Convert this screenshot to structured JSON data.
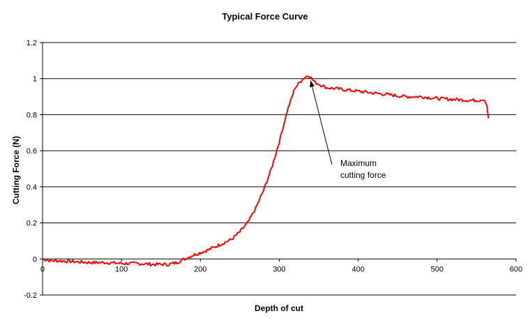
{
  "chart_data": {
    "type": "line",
    "title": "Typical Force Curve",
    "xlabel": "Depth of cut",
    "ylabel": "Cutting Force (N)",
    "xlim": [
      0,
      600
    ],
    "ylim": [
      -0.2,
      1.2
    ],
    "x_ticks": [
      "0",
      "100",
      "200",
      "300",
      "400",
      "500",
      "600"
    ],
    "y_ticks": [
      "-0.2",
      "0",
      "0.2",
      "0.4",
      "0.6",
      "0.8",
      "1",
      "1.2"
    ],
    "grid": "horizontal",
    "legend": "none",
    "series": [
      {
        "color": "#ff0000",
        "x": [
          0,
          10,
          20,
          40,
          60,
          80,
          100,
          120,
          140,
          160,
          170,
          180,
          190,
          200,
          210,
          220,
          230,
          240,
          250,
          260,
          270,
          280,
          290,
          300,
          310,
          320,
          330,
          337,
          345,
          360,
          380,
          400,
          420,
          440,
          460,
          480,
          500,
          520,
          540,
          555,
          560,
          563,
          565
        ],
        "y": [
          0.0,
          -0.01,
          -0.01,
          -0.015,
          -0.02,
          -0.02,
          -0.025,
          -0.025,
          -0.03,
          -0.03,
          -0.02,
          0.0,
          0.02,
          0.035,
          0.05,
          0.07,
          0.09,
          0.11,
          0.15,
          0.2,
          0.28,
          0.38,
          0.5,
          0.65,
          0.82,
          0.95,
          1.0,
          1.02,
          0.98,
          0.95,
          0.94,
          0.93,
          0.92,
          0.91,
          0.9,
          0.9,
          0.89,
          0.885,
          0.88,
          0.88,
          0.88,
          0.85,
          0.78
        ]
      }
    ],
    "annotations": [
      {
        "lines": [
          "Maximum",
          "cutting force"
        ],
        "arrow_to": [
          337,
          1.02
        ]
      }
    ]
  }
}
